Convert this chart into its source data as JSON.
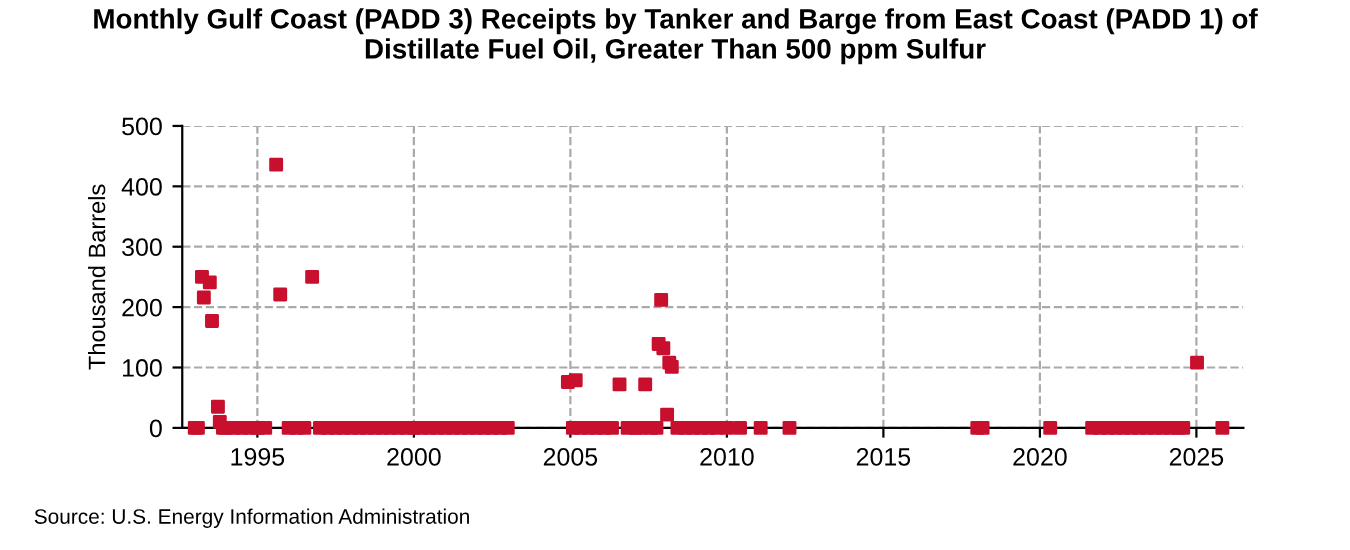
{
  "chart_data": {
    "type": "scatter",
    "title": "Monthly Gulf Coast (PADD 3) Receipts by Tanker and Barge from East Coast (PADD 1) of\nDistillate Fuel Oil, Greater Than 500 ppm Sulfur",
    "ylabel": "Thousand Barrels",
    "annotations": [
      "Source: U.S. Energy Information Administration"
    ],
    "series": [
      {
        "color": "#c8102e",
        "x": [
          1993.23,
          1993.29,
          1993.48,
          1993.55,
          1993.74,
          1993.8,
          1995.6,
          1995.73,
          1996.75,
          2004.92,
          2005.17,
          2006.57,
          2007.39,
          2007.9,
          2007.82,
          2007.97,
          2008.16,
          2008.24,
          2008.09,
          2025.02,
          1993.0,
          1993.1,
          1993.9,
          1994.0,
          1994.25,
          1994.5,
          1994.75,
          1995.0,
          1995.25,
          1996.0,
          1996.25,
          1996.5,
          1997.0,
          1997.25,
          1997.5,
          1997.75,
          1998.0,
          1998.25,
          1998.5,
          1998.75,
          1999.0,
          1999.25,
          1999.5,
          1999.75,
          2000.0,
          2000.25,
          2000.5,
          2000.75,
          2001.0,
          2001.25,
          2001.5,
          2001.75,
          2002.0,
          2002.25,
          2002.5,
          2002.75,
          2003.0,
          2005.08,
          2005.33,
          2005.58,
          2005.83,
          2006.08,
          2006.33,
          2006.83,
          2007.08,
          2007.25,
          2007.58,
          2007.75,
          2008.42,
          2008.67,
          2008.92,
          2009.17,
          2009.42,
          2009.67,
          2010.0,
          2010.42,
          2011.08,
          2012.0,
          2018.0,
          2018.17,
          2020.33,
          2021.67,
          2021.92,
          2022.17,
          2022.42,
          2022.67,
          2022.92,
          2023.17,
          2023.42,
          2023.67,
          2023.92,
          2024.17,
          2024.42,
          2024.58,
          2025.83
        ],
        "values": [
          250,
          216,
          241,
          177,
          35,
          10,
          436,
          221,
          250,
          76,
          79,
          72,
          72,
          212,
          139,
          132,
          108,
          101,
          22,
          108,
          0,
          0,
          0,
          0,
          0,
          0,
          0,
          0,
          0,
          0,
          0,
          0,
          0,
          0,
          0,
          0,
          0,
          0,
          0,
          0,
          0,
          0,
          0,
          0,
          0,
          0,
          0,
          0,
          0,
          0,
          0,
          0,
          0,
          0,
          0,
          0,
          0,
          0,
          0,
          0,
          0,
          0,
          0,
          0,
          0,
          0,
          0,
          0,
          0,
          0,
          0,
          0,
          0,
          0,
          0,
          0,
          0,
          0,
          0,
          0,
          0,
          0,
          0,
          0,
          0,
          0,
          0,
          0,
          0,
          0,
          0,
          0,
          0,
          0,
          0
        ]
      }
    ],
    "xlim": [
      1992.6,
      2026.5
    ],
    "xticks": [
      1995,
      2000,
      2005,
      2010,
      2015,
      2020,
      2025
    ],
    "ylim": [
      0,
      500
    ],
    "yticks": [
      0,
      100,
      200,
      300,
      400,
      500
    ],
    "grid": true,
    "marker": "square",
    "legend": false
  }
}
